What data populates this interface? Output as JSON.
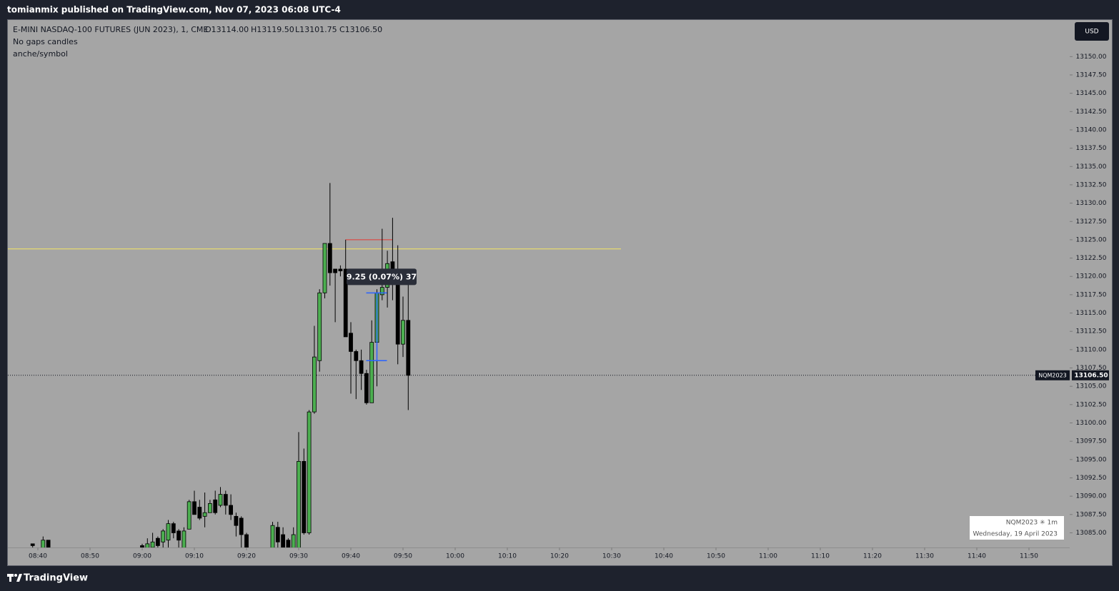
{
  "header": {
    "publisher": "tomianmix published on TradingView.com, Nov 07, 2023 06:08 UTC-4"
  },
  "chart_data": {
    "type": "candlestick",
    "title": "E-MINI NASDAQ-100 FUTURES (JUN 2023), 1, CME",
    "ohlc_labels": [
      "O13114.00",
      "H13119.50",
      "L13101.75",
      "C13106.50"
    ],
    "indicators": [
      "No gaps candles",
      "anche/symbol"
    ],
    "currency": "USD",
    "open": [
      13083.5,
      null,
      13082.5,
      13084,
      null,
      null,
      null,
      null,
      null,
      null,
      null,
      null,
      null,
      null,
      null,
      null,
      null,
      null,
      null,
      null,
      null,
      13083.25,
      13082.5,
      13083,
      13084.25,
      13083.75,
      13084,
      13086.25,
      13085.25,
      13082.5,
      13085.5,
      13089.25,
      13088.5,
      13087.25,
      13087.75,
      13089.5,
      13088.75,
      13090.25,
      13088.75,
      13087.25,
      13087,
      13084.75,
      null,
      null,
      null,
      null,
      13082.5,
      13085.75,
      13084.75,
      13084,
      13082.5,
      13082.5,
      13094.75,
      13085,
      13101.5,
      13108.5,
      13117.75,
      13124.5,
      13121,
      13121,
      13121,
      13112.25,
      13109.75,
      13108.5,
      13106.75,
      13102.75,
      13111,
      13117.5,
      13118.5,
      13122,
      13120,
      13110.75,
      13114
    ],
    "high": [
      13083.5,
      null,
      13084.5,
      13084,
      null,
      null,
      null,
      null,
      null,
      null,
      null,
      null,
      null,
      null,
      null,
      null,
      null,
      null,
      null,
      null,
      null,
      13083.5,
      13084.25,
      13085,
      13084.5,
      13085.5,
      13086.75,
      13086.5,
      13085.5,
      13085.75,
      13089.5,
      13090.75,
      13089.5,
      13090.5,
      13089.5,
      13090.75,
      13091.25,
      13090.75,
      13090.25,
      13087.75,
      13087.25,
      13085,
      null,
      null,
      null,
      null,
      13086.5,
      13086.5,
      13085.75,
      13084.25,
      13085.75,
      13098.75,
      13096.5,
      13101.75,
      13113.25,
      13118.25,
      13124.5,
      13132.75,
      13121,
      13121.5,
      13125,
      13113.75,
      13110,
      13110,
      13107.25,
      13114,
      13118.25,
      13126.5,
      13123.5,
      13128,
      13124.25,
      13117.25,
      13119.5
    ],
    "low": [
      13082.5,
      null,
      13082,
      13082,
      null,
      null,
      null,
      null,
      null,
      null,
      null,
      null,
      null,
      null,
      null,
      null,
      null,
      null,
      null,
      null,
      null,
      13082,
      13082,
      13082,
      13082.5,
      13082.5,
      13082.5,
      13084.25,
      13082.5,
      13082,
      13085.5,
      13087.5,
      13086.75,
      13085.75,
      13087.75,
      13087.5,
      13088.5,
      13087.5,
      13086.75,
      13084.5,
      13082.5,
      13082,
      null,
      null,
      null,
      null,
      13082,
      13082.5,
      13082,
      13082,
      13082,
      13082,
      13084.75,
      13084.75,
      13101.25,
      13107,
      13117,
      13118.75,
      13113.75,
      13120,
      13111.75,
      13104,
      13103.25,
      13104.5,
      13102.5,
      13102.75,
      13105,
      13116.75,
      13115.75,
      13116.75,
      13108,
      13109,
      13101.75
    ],
    "close": [
      13083.25,
      null,
      13084,
      13082.5,
      null,
      null,
      null,
      null,
      null,
      null,
      null,
      null,
      null,
      null,
      null,
      null,
      null,
      null,
      null,
      null,
      null,
      13083,
      13083.5,
      13083.75,
      13083.25,
      13085.25,
      13086.25,
      13085,
      13084,
      13085.25,
      13089.25,
      13087.5,
      13087,
      13087.75,
      13089,
      13087.75,
      13090.25,
      13088.75,
      13087.5,
      13086,
      13084.75,
      13082.5,
      null,
      null,
      null,
      null,
      13086,
      13083.75,
      13082.5,
      13082.5,
      13084.75,
      13094.75,
      13085,
      13101.5,
      13109,
      13117.75,
      13124.5,
      13120.5,
      13120.5,
      13120.75,
      13111.75,
      13109.75,
      13108.5,
      13106.75,
      13102.75,
      13111,
      13117.75,
      13118.5,
      13121.75,
      13120.25,
      13110.75,
      13114,
      13106.5
    ],
    "up_color": "#4caf50",
    "down_color": "#000000",
    "ylim": [
      13083,
      13155
    ],
    "yticks": [
      {
        "value": 13085,
        "label": "13085.00"
      },
      {
        "value": 13087.5,
        "label": "13087.50"
      },
      {
        "value": 13090,
        "label": "13090.00"
      },
      {
        "value": 13092.5,
        "label": "13092.50"
      },
      {
        "value": 13095,
        "label": "13095.00"
      },
      {
        "value": 13097.5,
        "label": "13097.50"
      },
      {
        "value": 13100,
        "label": "13100.00"
      },
      {
        "value": 13102.5,
        "label": "13102.50"
      },
      {
        "value": 13105,
        "label": "13105.00"
      },
      {
        "value": 13107.5,
        "label": "13107.50"
      },
      {
        "value": 13110,
        "label": "13110.00"
      },
      {
        "value": 13112.5,
        "label": "13112.50"
      },
      {
        "value": 13115,
        "label": "13115.00"
      },
      {
        "value": 13117.5,
        "label": "13117.50"
      },
      {
        "value": 13120,
        "label": "13120.00"
      },
      {
        "value": 13122.5,
        "label": "13122.50"
      },
      {
        "value": 13125,
        "label": "13125.00"
      },
      {
        "value": 13127.5,
        "label": "13127.50"
      },
      {
        "value": 13130,
        "label": "13130.00"
      },
      {
        "value": 13132.5,
        "label": "13132.50"
      },
      {
        "value": 13135,
        "label": "13135.00"
      },
      {
        "value": 13137.5,
        "label": "13137.50"
      },
      {
        "value": 13140,
        "label": "13140.00"
      },
      {
        "value": 13142.5,
        "label": "13142.50"
      },
      {
        "value": 13145,
        "label": "13145.00"
      },
      {
        "value": 13147.5,
        "label": "13147.50"
      },
      {
        "value": 13150,
        "label": "13150.00"
      }
    ],
    "xticks": [
      "08:40",
      "08:50",
      "09:00",
      "09:10",
      "09:20",
      "09:30",
      "09:40",
      "09:50",
      "10:00",
      "10:10",
      "10:20",
      "10:30",
      "10:40",
      "10:50",
      "11:00",
      "11:10",
      "11:20",
      "11:30",
      "11:40",
      "11:50"
    ],
    "horizontal_lines": [
      {
        "value": 13123.75,
        "color": "#f5e663"
      },
      {
        "value": 13125,
        "color": "#e53935"
      }
    ],
    "measure": {
      "from": 13108.5,
      "to": 13117.75,
      "label": "9.25 (0.07%) 37",
      "color": "#2962ff"
    },
    "last_price": {
      "symbol": "NQM2023",
      "value": 13106.5,
      "label": "13106.50"
    },
    "legend": {
      "symbol": "NQM2023 ✳ 1m",
      "date": "Wednesday, 19 April 2023"
    }
  },
  "footer": {
    "brand": "TradingView"
  }
}
